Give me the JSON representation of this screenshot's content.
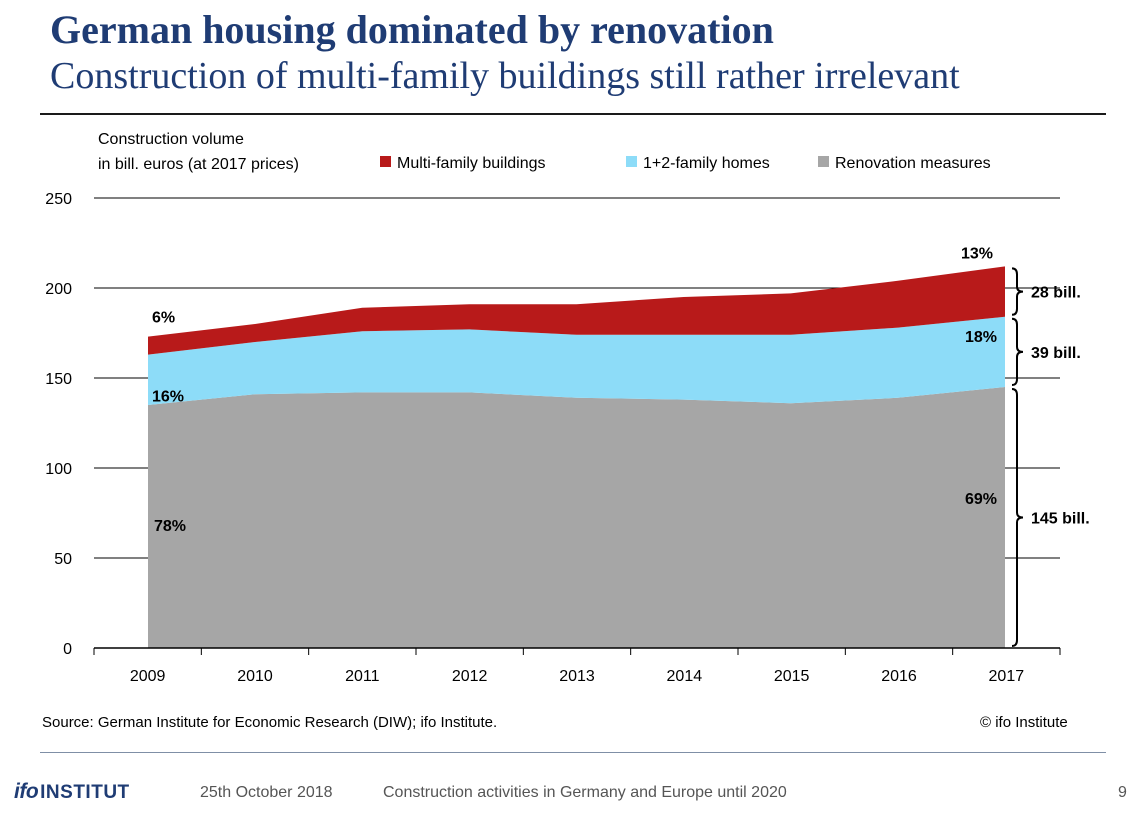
{
  "slide": {
    "title": "German housing dominated by renovation",
    "subtitle": "Construction of multi-family buildings still rather irrelevant",
    "source": "Source: German Institute for Economic Research (DIW); ifo Institute.",
    "copyright": "© ifo Institute"
  },
  "footer": {
    "logo_prefix": "ifo",
    "logo_text": "INSTITUT",
    "date": "25th October 2018",
    "text": "Construction activities in Germany and Europe until 2020",
    "page": "9"
  },
  "chart_data": {
    "type": "area",
    "stacked": true,
    "ylabel_line1": "Construction volume",
    "ylabel_line2": "in bill. euros (at 2017 prices)",
    "categories": [
      "2009",
      "2010",
      "2011",
      "2012",
      "2013",
      "2014",
      "2015",
      "2016",
      "2017"
    ],
    "ylim": [
      0,
      250
    ],
    "yticks": [
      0,
      50,
      100,
      150,
      200,
      250
    ],
    "grid": true,
    "legend_position": "top",
    "series": [
      {
        "name": "Renovation measures",
        "color": "#a6a6a6",
        "values": [
          135,
          141,
          142,
          142,
          139,
          138,
          136,
          139,
          145
        ]
      },
      {
        "name": "1+2-family homes",
        "color": "#8ddcf8",
        "values": [
          28,
          29,
          34,
          35,
          35,
          36,
          38,
          39,
          39
        ]
      },
      {
        "name": "Multi-family buildings",
        "color": "#b81a1a",
        "values": [
          10,
          10,
          13,
          14,
          17,
          21,
          23,
          26,
          28
        ]
      }
    ],
    "legend_order": [
      "Multi-family buildings",
      "1+2-family homes",
      "Renovation measures"
    ],
    "annotations": [
      {
        "text": "6%",
        "year": "2009",
        "series": "Multi-family buildings"
      },
      {
        "text": "16%",
        "year": "2009",
        "series": "1+2-family homes"
      },
      {
        "text": "78%",
        "year": "2009",
        "series": "Renovation measures"
      },
      {
        "text": "13%",
        "year": "2017",
        "series": "Multi-family buildings"
      },
      {
        "text": "18%",
        "year": "2017",
        "series": "1+2-family homes"
      },
      {
        "text": "69%",
        "year": "2017",
        "series": "Renovation measures"
      }
    ],
    "brackets": [
      {
        "text": "28 bill.",
        "series": "Multi-family buildings"
      },
      {
        "text": "39 bill.",
        "series": "1+2-family homes"
      },
      {
        "text": "145 bill.",
        "series": "Renovation measures"
      }
    ]
  }
}
